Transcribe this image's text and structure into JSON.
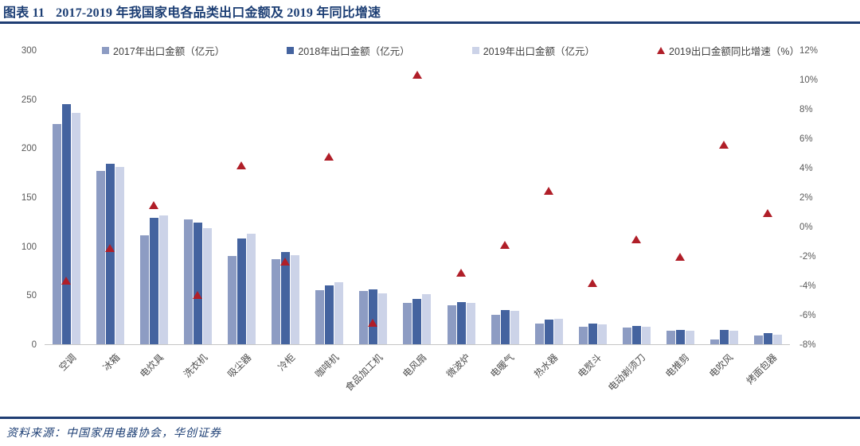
{
  "header": {
    "figure_label": "图表 11",
    "title": "2017-2019 年我国家电各品类出口金额及 2019 年同比增速"
  },
  "footer": {
    "source": "资料来源：中国家用电器协会，华创证券"
  },
  "colors": {
    "bar_2017": "#8d9cc3",
    "bar_2018": "#44639f",
    "bar_2019": "#ccd3e8",
    "growth_marker": "#b01e28",
    "accent_navy": "#1c3e74",
    "axis_text": "#595959"
  },
  "chart_data": {
    "type": "bar",
    "subtype": "grouped-bars-with-scatter-overlay-dual-axis",
    "grid": false,
    "legend_position": "top",
    "categories": [
      "空调",
      "冰箱",
      "电炊具",
      "洗衣机",
      "吸尘器",
      "冷柜",
      "咖啡机",
      "食品加工机",
      "电风扇",
      "微波炉",
      "电暖气",
      "热水器",
      "电熨斗",
      "电动剃须刀",
      "电推剪",
      "电吹风",
      "烤面包器"
    ],
    "series": [
      {
        "name": "2017年出口金额（亿元）",
        "type": "bar",
        "axis": "left",
        "color": "#8d9cc3",
        "values": [
          225,
          177,
          111,
          127,
          90,
          87,
          55,
          54,
          42,
          40,
          30,
          21,
          18,
          17,
          14,
          5,
          9
        ]
      },
      {
        "name": "2018年出口金额（亿元）",
        "type": "bar",
        "axis": "left",
        "color": "#44639f",
        "values": [
          245,
          184,
          129,
          124,
          108,
          94,
          60,
          56,
          46,
          43,
          35,
          25,
          21,
          19,
          15,
          15,
          11
        ]
      },
      {
        "name": "2019年出口金额（亿元）",
        "type": "bar",
        "axis": "left",
        "color": "#ccd3e8",
        "values": [
          236,
          181,
          131,
          118,
          113,
          91,
          63,
          52,
          51,
          42,
          34,
          26,
          20,
          18,
          14,
          14,
          10
        ]
      },
      {
        "name": "2019出口金额同比增速（%）",
        "type": "scatter",
        "axis": "right",
        "marker": "triangle",
        "color": "#b01e28",
        "values": [
          -3.6,
          -1.4,
          1.5,
          -4.6,
          4.2,
          -2.3,
          4.8,
          -6.5,
          10.4,
          -3.1,
          -1.2,
          2.5,
          -3.8,
          -0.8,
          -2.0,
          5.6,
          1.0
        ]
      }
    ],
    "left_axis": {
      "min": 0,
      "max": 300,
      "tick_step": 50,
      "tick_labels": [
        "300",
        "250",
        "200",
        "150",
        "100",
        "50",
        "0"
      ]
    },
    "right_axis": {
      "min": -8,
      "max": 12,
      "tick_step": 2,
      "tick_labels": [
        "12%",
        "10%",
        "8%",
        "6%",
        "4%",
        "2%",
        "0%",
        "-2%",
        "-4%",
        "-6%",
        "-8%"
      ]
    }
  }
}
